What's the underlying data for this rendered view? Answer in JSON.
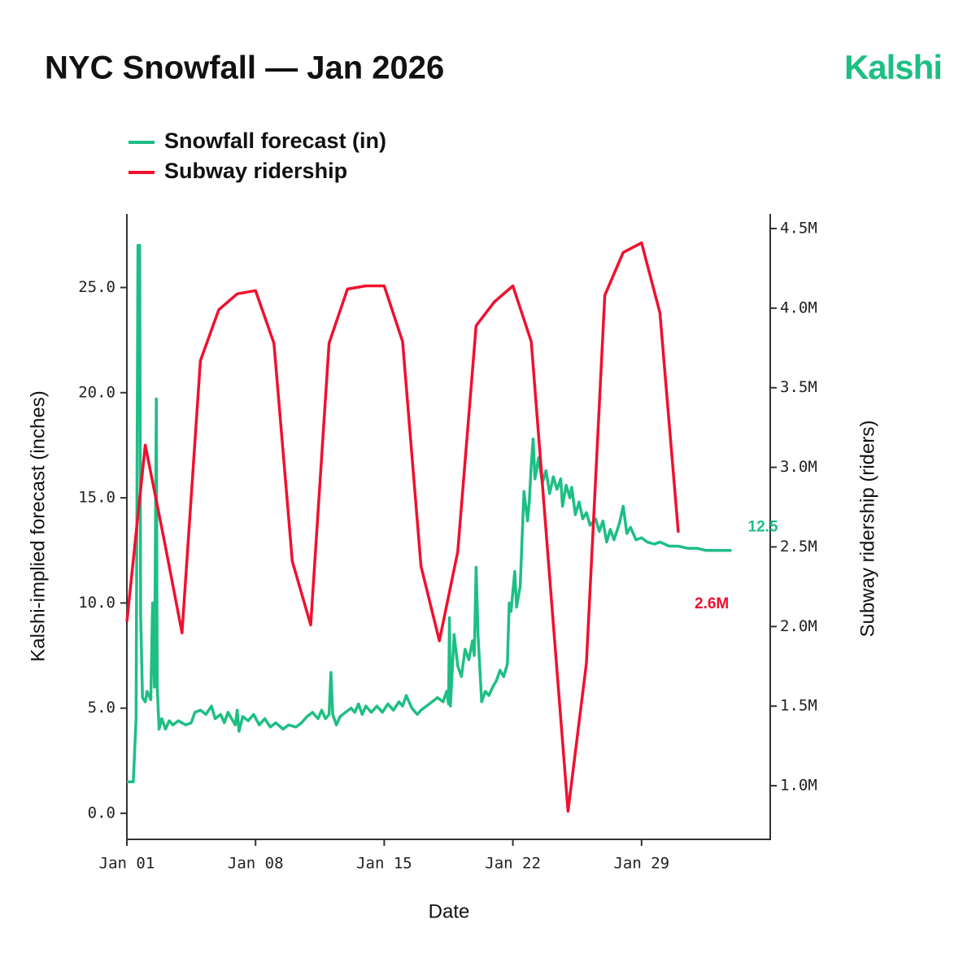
{
  "chart_data": {
    "type": "line",
    "title": "NYC Snowfall — Jan 2026",
    "brand": "Kalshi",
    "xlabel": "Date",
    "ylabel": "Kalshi-implied forecast (inches)",
    "y2label": "Subway ridership (riders)",
    "xlim": [
      0,
      35
    ],
    "xticks": [
      {
        "value": 0,
        "label": "Jan 01"
      },
      {
        "value": 7,
        "label": "Jan 08"
      },
      {
        "value": 14,
        "label": "Jan 15"
      },
      {
        "value": 21,
        "label": "Jan 22"
      },
      {
        "value": 28,
        "label": "Jan 29"
      }
    ],
    "ylim": [
      -1.24,
      28.5
    ],
    "yticks": [
      {
        "value": 0,
        "label": "0.0"
      },
      {
        "value": 5,
        "label": "5.0"
      },
      {
        "value": 10,
        "label": "10.0"
      },
      {
        "value": 15,
        "label": "15.0"
      },
      {
        "value": 20,
        "label": "20.0"
      },
      {
        "value": 25,
        "label": "25.0"
      }
    ],
    "y2lim": [
      663000,
      4592000
    ],
    "y2ticks": [
      {
        "value": 1000000,
        "label": "1.0M"
      },
      {
        "value": 1500000,
        "label": "1.5M"
      },
      {
        "value": 2000000,
        "label": "2.0M"
      },
      {
        "value": 2500000,
        "label": "2.5M"
      },
      {
        "value": 3000000,
        "label": "3.0M"
      },
      {
        "value": 3500000,
        "label": "3.5M"
      },
      {
        "value": 4000000,
        "label": "4.0M"
      },
      {
        "value": 4500000,
        "label": "4.5M"
      }
    ],
    "series": [
      {
        "name": "Snowfall forecast (in)",
        "color": "#1dbf84",
        "axis": "y",
        "x": [
          0,
          0.1,
          0.35,
          0.5,
          0.6,
          0.7,
          0.75,
          0.85,
          1.0,
          1.1,
          1.3,
          1.4,
          1.5,
          1.6,
          1.65,
          1.75,
          1.9,
          2.1,
          2.3,
          2.5,
          2.8,
          3.2,
          3.5,
          3.7,
          4.0,
          4.3,
          4.6,
          4.8,
          5.1,
          5.3,
          5.5,
          5.7,
          5.9,
          6.0,
          6.1,
          6.3,
          6.6,
          6.9,
          7.2,
          7.5,
          7.8,
          8.1,
          8.5,
          8.8,
          9.2,
          9.5,
          9.8,
          10.1,
          10.4,
          10.6,
          10.8,
          11.0,
          11.1,
          11.2,
          11.4,
          11.6,
          11.9,
          12.2,
          12.4,
          12.6,
          12.8,
          13.0,
          13.3,
          13.6,
          13.9,
          14.2,
          14.5,
          14.8,
          15.0,
          15.2,
          15.5,
          15.8,
          16.0,
          16.3,
          16.6,
          16.9,
          17.2,
          17.4,
          17.5,
          17.55,
          17.6,
          17.8,
          18.0,
          18.2,
          18.4,
          18.6,
          18.8,
          18.9,
          19.0,
          19.1,
          19.3,
          19.5,
          19.7,
          19.9,
          20.1,
          20.3,
          20.5,
          20.7,
          20.8,
          20.9,
          21.1,
          21.2,
          21.4,
          21.6,
          21.8,
          21.9,
          22.0,
          22.1,
          22.2,
          22.4,
          22.6,
          22.8,
          23.0,
          23.2,
          23.4,
          23.6,
          23.7,
          23.9,
          24.1,
          24.2,
          24.4,
          24.6,
          24.8,
          25.0,
          25.2,
          25.5,
          25.7,
          25.9,
          26.1,
          26.3,
          26.5,
          26.8,
          27.0,
          27.2,
          27.4,
          27.7,
          28.0,
          28.3,
          28.7,
          29.0,
          29.5,
          30.0,
          30.5,
          31.0,
          31.5,
          32.0,
          32.5,
          32.9
        ],
        "values": [
          1.5,
          1.5,
          1.5,
          4.5,
          27,
          27,
          9.5,
          5.5,
          5.3,
          5.8,
          5.4,
          10,
          6,
          19.7,
          6,
          4,
          4.5,
          4.0,
          4.4,
          4.2,
          4.4,
          4.2,
          4.3,
          4.8,
          4.9,
          4.7,
          5.1,
          4.5,
          4.7,
          4.3,
          4.8,
          4.5,
          4.2,
          4.9,
          3.9,
          4.6,
          4.4,
          4.7,
          4.2,
          4.5,
          4.1,
          4.3,
          4.0,
          4.2,
          4.1,
          4.3,
          4.6,
          4.8,
          4.5,
          4.9,
          4.5,
          4.7,
          6.7,
          4.7,
          4.2,
          4.6,
          4.8,
          5.0,
          4.8,
          5.2,
          4.7,
          5.1,
          4.8,
          5.1,
          4.8,
          5.2,
          4.9,
          5.3,
          5.1,
          5.6,
          5.0,
          4.7,
          4.9,
          5.1,
          5.3,
          5.5,
          5.3,
          5.8,
          5.2,
          9.3,
          5.1,
          8.5,
          7.0,
          6.5,
          7.8,
          7.3,
          8.2,
          7.5,
          11.7,
          8.5,
          5.3,
          5.8,
          5.6,
          6.0,
          6.3,
          6.8,
          6.5,
          7.1,
          10.0,
          9.6,
          11.5,
          9.8,
          10.8,
          15.3,
          13.9,
          14.9,
          16.6,
          17.8,
          15.9,
          16.9,
          15.7,
          16.3,
          15.2,
          16.0,
          15.4,
          15.9,
          14.6,
          15.6,
          15.0,
          15.5,
          14.2,
          14.8,
          14.0,
          14.3,
          13.7,
          14.0,
          13.4,
          13.9,
          12.9,
          13.5,
          13.0,
          13.8,
          14.6,
          13.3,
          13.6,
          13.0,
          13.1,
          12.9,
          12.8,
          12.9,
          12.7,
          12.7,
          12.6,
          12.6,
          12.5,
          12.5,
          12.5,
          12.5
        ],
        "end_label": "12.5"
      },
      {
        "name": "Subway ridership",
        "color": "#f0102f",
        "axis": "y2",
        "x": [
          0,
          1,
          2,
          3,
          4,
          5,
          6,
          7,
          8,
          9,
          10,
          11,
          12,
          13,
          14,
          15,
          16,
          17,
          18,
          19,
          20,
          21,
          22,
          23,
          24,
          25,
          26,
          27,
          28,
          29,
          30
        ],
        "values": [
          2030000,
          3140000,
          2560000,
          1960000,
          3670000,
          3990000,
          4090000,
          4110000,
          3780000,
          2410000,
          2010000,
          3780000,
          4120000,
          4140000,
          4140000,
          3790000,
          2380000,
          1910000,
          2470000,
          3890000,
          4040000,
          4140000,
          3790000,
          2310000,
          840000,
          1770000,
          4080000,
          4350000,
          4410000,
          3970000,
          2590000
        ],
        "end_label": "2.6M"
      }
    ]
  }
}
